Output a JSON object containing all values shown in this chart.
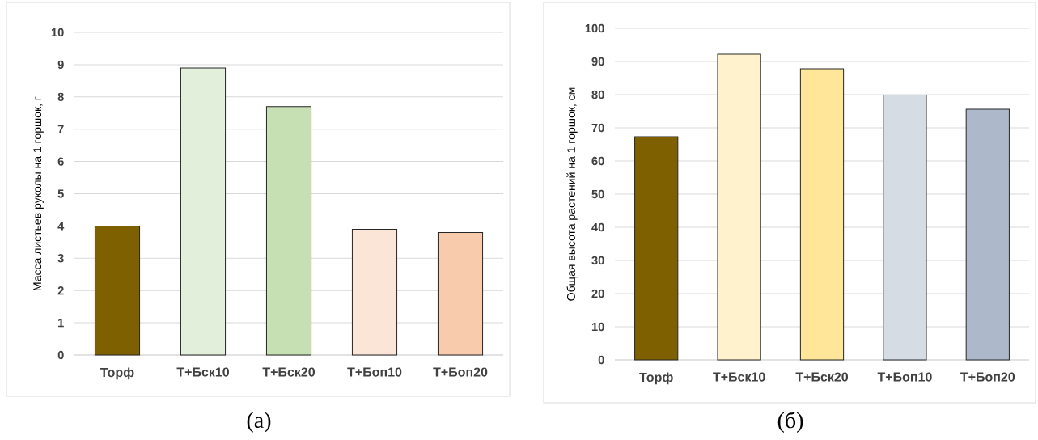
{
  "chart_data": [
    {
      "type": "bar",
      "ylabel": "Масса листьев руколы на 1 горшок, г",
      "categories": [
        "Торф",
        "Т+Бск10",
        "Т+Бск20",
        "Т+Боп10",
        "Т+Боп20"
      ],
      "values": [
        4.0,
        8.9,
        7.7,
        3.9,
        3.8
      ],
      "colors": [
        "#7f6000",
        "#e2efda",
        "#c6e0b4",
        "#fbe5d6",
        "#f8cbad"
      ],
      "ylim": [
        0,
        10
      ],
      "yticks": [
        0,
        1,
        2,
        3,
        4,
        5,
        6,
        7,
        8,
        9,
        10
      ],
      "grid": "y",
      "annotations": [
        "(а)"
      ]
    },
    {
      "type": "bar",
      "ylabel": "Общая высота растений на 1 горшок, см",
      "categories": [
        "Торф",
        "Т+Бск10",
        "Т+Бск20",
        "Т+Боп10",
        "Т+Боп20"
      ],
      "values": [
        67.3,
        92.2,
        87.8,
        79.9,
        75.6
      ],
      "colors": [
        "#7f6000",
        "#fff2cc",
        "#ffe699",
        "#d6dce4",
        "#adb9ca"
      ],
      "ylim": [
        0,
        100
      ],
      "yticks": [
        0,
        10,
        20,
        30,
        40,
        50,
        60,
        70,
        80,
        90,
        100
      ],
      "grid": "y",
      "annotations": [
        "(б)"
      ]
    }
  ]
}
